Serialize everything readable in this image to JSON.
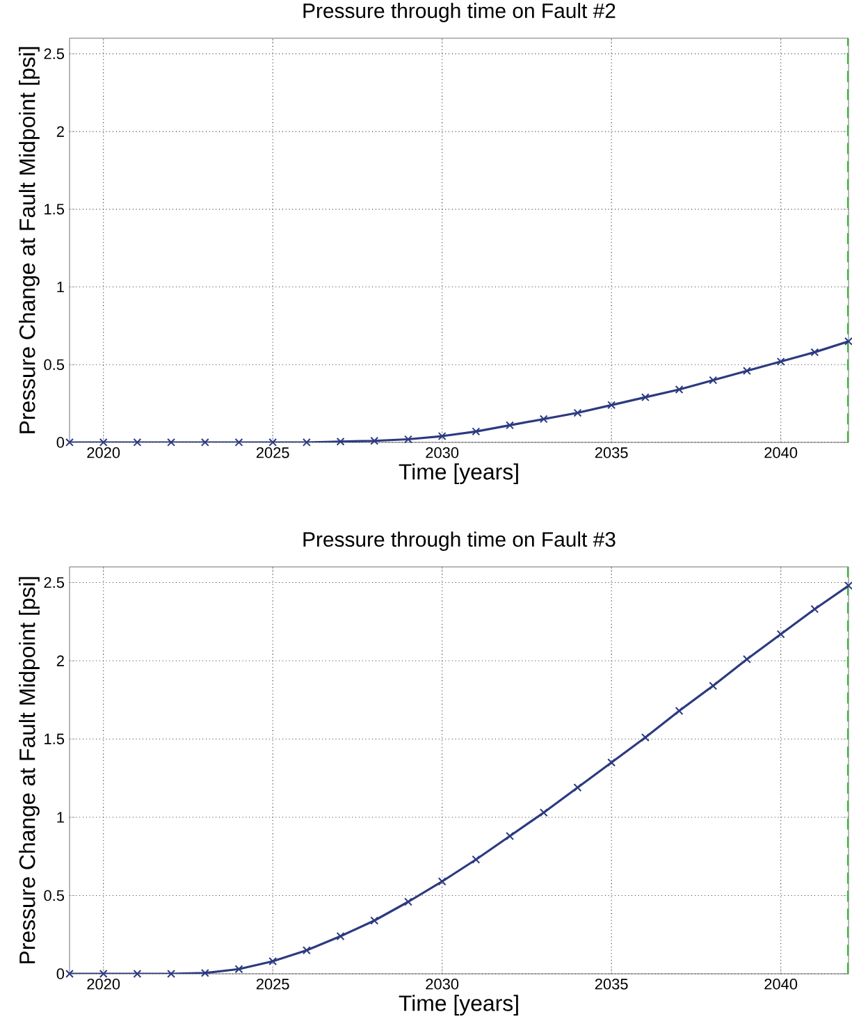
{
  "chart_data": [
    {
      "type": "line",
      "title": "Pressure through time on Fault #2",
      "xlabel": "Time [years]",
      "ylabel": "Pressure Change at Fault Midpoint [psi]",
      "x": [
        2019,
        2020,
        2021,
        2022,
        2023,
        2024,
        2025,
        2026,
        2027,
        2028,
        2029,
        2030,
        2031,
        2032,
        2033,
        2034,
        2035,
        2036,
        2037,
        2038,
        2039,
        2040,
        2041,
        2042
      ],
      "series": [
        {
          "color": "#2b3a80",
          "values": [
            0,
            0,
            0,
            0,
            0,
            0,
            0,
            0,
            0.005,
            0.01,
            0.02,
            0.04,
            0.07,
            0.11,
            0.15,
            0.19,
            0.24,
            0.29,
            0.34,
            0.4,
            0.46,
            0.52,
            0.58,
            0.65
          ]
        }
      ],
      "xlim": [
        2019,
        2042
      ],
      "ylim": [
        0,
        2.6
      ],
      "xticks": [
        2020,
        2025,
        2030,
        2035,
        2040
      ],
      "yticks": [
        0,
        0.5,
        1,
        1.5,
        2,
        2.5
      ],
      "grid": true,
      "marker": "cross",
      "line_style": "solid",
      "ref_lines": [
        {
          "axis": "x",
          "value": 2042,
          "color": "#33bb33",
          "line_style": "dashed"
        }
      ]
    },
    {
      "type": "line",
      "title": "Pressure through time on Fault #3",
      "xlabel": "Time [years]",
      "ylabel": "Pressure Change at Fault Midpoint [psi]",
      "x": [
        2019,
        2020,
        2021,
        2022,
        2023,
        2024,
        2025,
        2026,
        2027,
        2028,
        2029,
        2030,
        2031,
        2032,
        2033,
        2034,
        2035,
        2036,
        2037,
        2038,
        2039,
        2040,
        2041,
        2042
      ],
      "series": [
        {
          "color": "#2b3a80",
          "values": [
            0,
            0,
            0,
            0,
            0.005,
            0.03,
            0.08,
            0.15,
            0.24,
            0.34,
            0.46,
            0.59,
            0.73,
            0.88,
            1.03,
            1.19,
            1.35,
            1.51,
            1.68,
            1.84,
            2.01,
            2.17,
            2.33,
            2.48
          ]
        }
      ],
      "xlim": [
        2019,
        2042
      ],
      "ylim": [
        0,
        2.6
      ],
      "xticks": [
        2020,
        2025,
        2030,
        2035,
        2040
      ],
      "yticks": [
        0,
        0.5,
        1,
        1.5,
        2,
        2.5
      ],
      "grid": true,
      "marker": "cross",
      "line_style": "solid",
      "ref_lines": [
        {
          "axis": "x",
          "value": 2042,
          "color": "#33bb33",
          "line_style": "dashed"
        }
      ]
    }
  ]
}
